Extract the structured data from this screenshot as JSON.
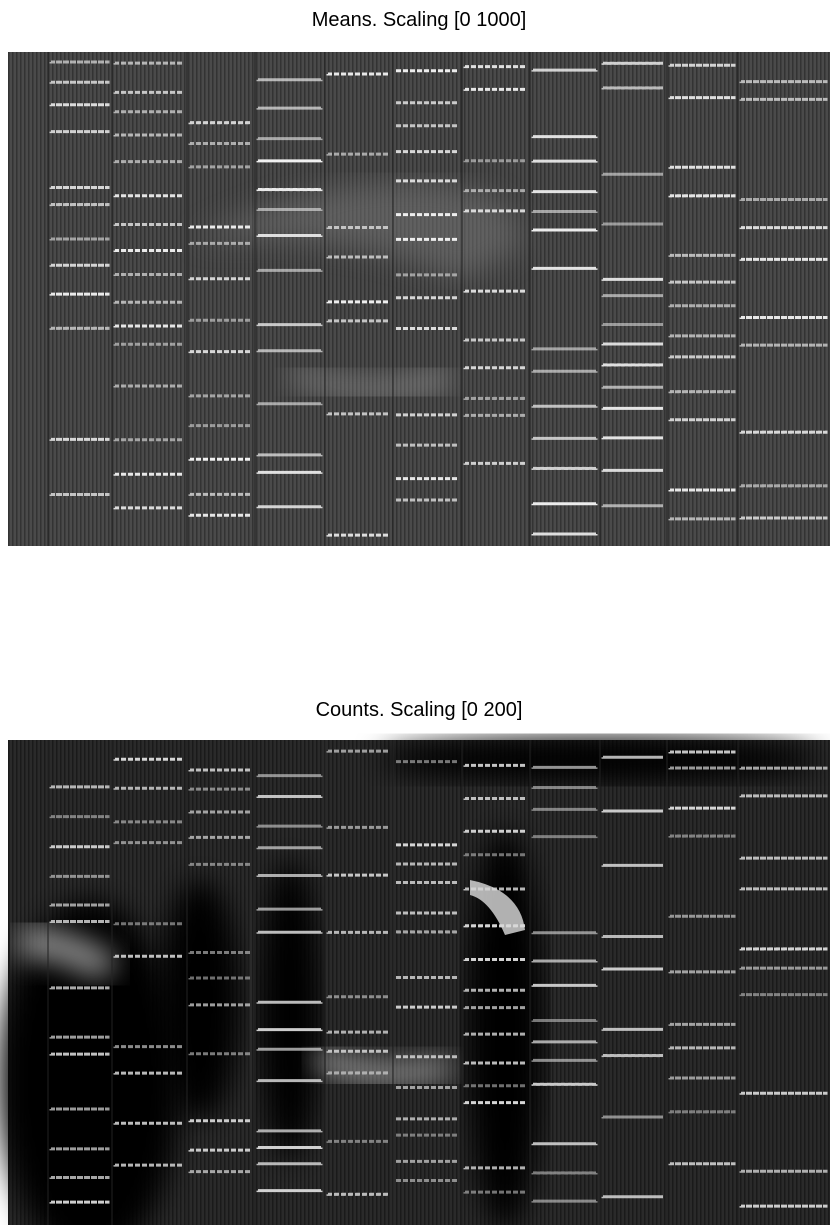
{
  "panels": [
    {
      "title": "Means. Scaling [0 1000]"
    },
    {
      "title": "Counts. Scaling [0 200]"
    }
  ]
}
